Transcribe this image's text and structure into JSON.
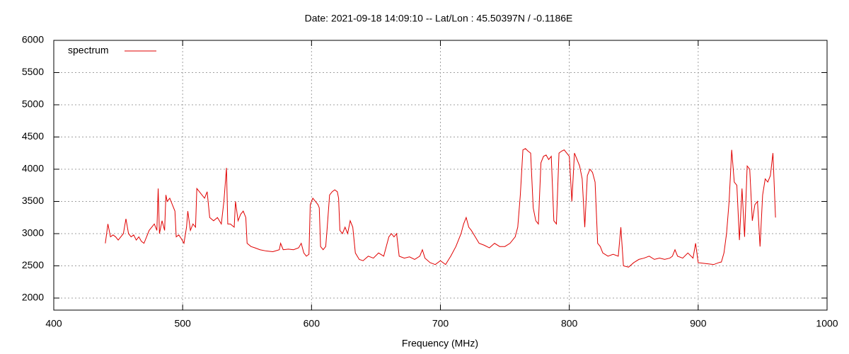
{
  "chart_data": {
    "type": "line",
    "title": "Date: 2021-09-18 14:09:10  --  Lat/Lon : 45.50397N / -0.1186E",
    "xlabel": "Frequency (MHz)",
    "xlim": [
      400,
      1000
    ],
    "xticks": [
      400,
      500,
      600,
      700,
      800,
      900,
      1000
    ],
    "ylim": [
      1813,
      6000
    ],
    "yticks": [
      2000,
      2500,
      3000,
      3500,
      4000,
      4500,
      5000,
      5500,
      6000
    ],
    "grid": true,
    "legend": "top-left",
    "x": [
      440,
      442,
      444,
      446,
      448,
      450,
      452,
      454,
      456,
      458,
      460,
      462,
      464,
      466,
      468,
      470,
      472,
      474,
      476,
      478,
      480,
      481,
      482,
      484,
      486,
      487,
      488,
      490,
      492,
      494,
      495,
      497,
      499,
      501,
      503,
      504,
      506,
      508,
      510,
      511,
      513,
      515,
      517,
      519,
      521,
      524,
      527,
      530,
      532,
      534,
      535,
      537,
      540,
      541,
      543,
      545,
      547,
      549,
      550,
      553,
      556,
      560,
      565,
      570,
      575,
      576,
      578,
      582,
      586,
      590,
      592,
      594,
      596,
      598,
      599,
      601,
      603,
      605,
      606,
      607,
      609,
      611,
      612,
      614,
      616,
      618,
      620,
      621,
      622,
      624,
      626,
      628,
      630,
      632,
      634,
      637,
      640,
      644,
      648,
      652,
      656,
      660,
      662,
      664,
      666,
      668,
      672,
      676,
      680,
      684,
      686,
      688,
      692,
      696,
      700,
      704,
      708,
      712,
      716,
      718,
      720,
      722,
      724,
      727,
      730,
      734,
      738,
      742,
      746,
      750,
      754,
      758,
      760,
      762,
      764,
      766,
      768,
      770,
      772,
      774,
      776,
      778,
      780,
      782,
      784,
      786,
      788,
      790,
      792,
      794,
      796,
      798,
      800,
      802,
      804,
      806,
      808,
      810,
      812,
      814,
      816,
      818,
      820,
      822,
      824,
      826,
      830,
      834,
      838,
      840,
      842,
      846,
      850,
      854,
      858,
      862,
      866,
      870,
      874,
      878,
      880,
      882,
      884,
      888,
      892,
      896,
      898,
      900,
      904,
      908,
      912,
      916,
      918,
      920,
      922,
      924,
      926,
      928,
      930,
      932,
      934,
      936,
      938,
      940,
      942,
      944,
      946,
      948,
      950,
      952,
      954,
      956,
      958,
      960
    ],
    "series": [
      {
        "name": "spectrum",
        "color": "#e00000",
        "values": [
          2850,
          3150,
          2950,
          2980,
          2950,
          2900,
          2950,
          3000,
          3230,
          3000,
          2950,
          2980,
          2900,
          2950,
          2880,
          2850,
          2950,
          3050,
          3100,
          3150,
          3050,
          3700,
          3000,
          3200,
          3050,
          3600,
          3500,
          3550,
          3450,
          3350,
          2950,
          2980,
          2920,
          2850,
          3100,
          3350,
          3050,
          3150,
          3100,
          3700,
          3650,
          3600,
          3550,
          3650,
          3250,
          3200,
          3250,
          3150,
          3500,
          4020,
          3150,
          3150,
          3100,
          3500,
          3200,
          3300,
          3350,
          3250,
          2850,
          2800,
          2780,
          2750,
          2730,
          2720,
          2750,
          2850,
          2750,
          2760,
          2750,
          2780,
          2850,
          2700,
          2650,
          2680,
          3450,
          3550,
          3500,
          3450,
          3400,
          2800,
          2750,
          2800,
          3050,
          3600,
          3650,
          3680,
          3650,
          3550,
          3050,
          3000,
          3100,
          3000,
          3200,
          3100,
          2700,
          2600,
          2580,
          2650,
          2620,
          2700,
          2650,
          2950,
          3000,
          2950,
          3000,
          2650,
          2620,
          2640,
          2600,
          2650,
          2750,
          2620,
          2550,
          2520,
          2580,
          2520,
          2650,
          2800,
          3000,
          3150,
          3250,
          3100,
          3050,
          2950,
          2850,
          2820,
          2780,
          2850,
          2800,
          2800,
          2850,
          2950,
          3100,
          3600,
          4300,
          4320,
          4280,
          4250,
          3400,
          3200,
          3150,
          4100,
          4200,
          4220,
          4150,
          4200,
          3200,
          3150,
          4250,
          4280,
          4300,
          4250,
          4200,
          3500,
          4250,
          4150,
          4050,
          3850,
          3100,
          3900,
          4000,
          3950,
          3800,
          2850,
          2800,
          2700,
          2650,
          2680,
          2650,
          3100,
          2500,
          2480,
          2550,
          2600,
          2620,
          2650,
          2600,
          2620,
          2600,
          2620,
          2650,
          2750,
          2650,
          2620,
          2700,
          2620,
          2850,
          2550,
          2540,
          2530,
          2520,
          2550,
          2560,
          2700,
          3000,
          3500,
          4300,
          3800,
          3750,
          2900,
          3700,
          2950,
          4050,
          4000,
          3200,
          3450,
          3500,
          2800,
          3600,
          3850,
          3800,
          3900,
          4250,
          3250
        ]
      }
    ]
  }
}
